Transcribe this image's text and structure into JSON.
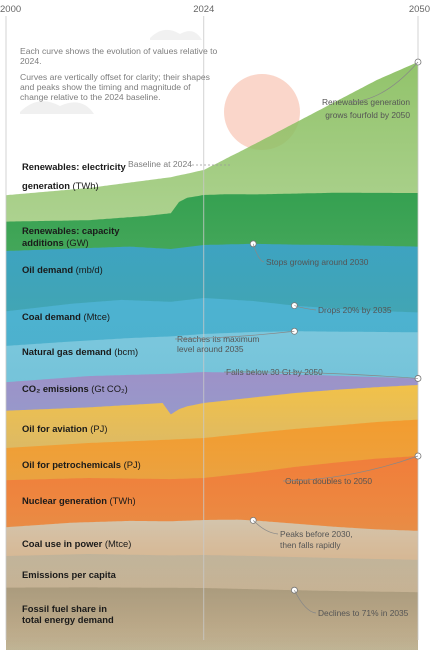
{
  "chart_data": {
    "type": "area",
    "x_axis": {
      "ticks": [
        "2000",
        "2024",
        "2050"
      ],
      "range": [
        2000,
        2050
      ],
      "baseline_year": "2024"
    },
    "notes": [
      "Each curve shows the evolution of values relative to 2024.",
      "Curves are vertically offset for clarity; their shapes and peaks show the timing and magnitude of change relative to the 2024 baseline."
    ],
    "baseline_label": "Baseline at 2024",
    "series": [
      {
        "name": "Renewables: electricity generation",
        "unit": "(TWh)",
        "color": "#8cc063",
        "x": [
          2000,
          2010,
          2020,
          2024,
          2030,
          2035,
          2040,
          2045,
          2050
        ],
        "y": [
          0.3,
          0.5,
          0.8,
          1.0,
          1.7,
          2.3,
          2.9,
          3.5,
          4.0
        ],
        "annotation": {
          "text": "Renewables generation grows fourfold by 2050",
          "year": 2050
        }
      },
      {
        "name": "Renewables: capacity additions",
        "unit": "(GW)",
        "color": "#2f9e4e",
        "x": [
          2000,
          2010,
          2017,
          2020,
          2021,
          2022,
          2024,
          2027,
          2030,
          2035,
          2040,
          2050
        ],
        "y": [
          0.05,
          0.1,
          0.25,
          0.35,
          0.75,
          0.9,
          1.0,
          1.03,
          1.02,
          1.05,
          1.08,
          1.07
        ]
      },
      {
        "name": "Oil demand",
        "unit": "(mb/d)",
        "color": "#3da3c7",
        "x": [
          2000,
          2008,
          2015,
          2020,
          2024,
          2030,
          2035,
          2040,
          2045,
          2050
        ],
        "y": [
          0.85,
          0.91,
          0.96,
          0.9,
          1.0,
          1.03,
          1.01,
          1.0,
          0.98,
          0.96
        ],
        "annotation": {
          "text": "Stops growing around 2030",
          "year": 2030
        }
      },
      {
        "name": "Coal demand",
        "unit": "(Mtce)",
        "color": "#4eb3d3",
        "x": [
          2000,
          2008,
          2014,
          2020,
          2024,
          2030,
          2035,
          2040,
          2045,
          2050
        ],
        "y": [
          0.65,
          0.85,
          0.95,
          0.9,
          1.0,
          0.92,
          0.8,
          0.72,
          0.66,
          0.62
        ],
        "annotation": {
          "text": "Drops 20% by 2035",
          "year": 2035
        }
      },
      {
        "name": "Natural gas demand",
        "unit": "(bcm)",
        "color": "#7ec8dd",
        "x": [
          2000,
          2008,
          2015,
          2020,
          2024,
          2030,
          2035,
          2040,
          2045,
          2050
        ],
        "y": [
          0.65,
          0.78,
          0.88,
          0.93,
          1.0,
          1.06,
          1.08,
          1.07,
          1.06,
          1.05
        ],
        "annotation": {
          "text": "Reaches its maximum level around 2035",
          "year": 2035
        }
      },
      {
        "name": "CO₂ emissions",
        "unit": "(Gt CO₂)",
        "color": "#9f8fc7",
        "x": [
          2000,
          2010,
          2020,
          2024,
          2030,
          2035,
          2040,
          2045,
          2050
        ],
        "y": [
          0.7,
          0.88,
          0.95,
          1.0,
          0.97,
          0.93,
          0.89,
          0.85,
          0.81
        ],
        "annotation": {
          "text": "Falls below 30 Gt by 2050",
          "year": 2050
        }
      },
      {
        "name": "Oil for aviation",
        "unit": "(PJ)",
        "color": "#f6c442",
        "x": [
          2000,
          2010,
          2019,
          2020,
          2021,
          2022,
          2024,
          2030,
          2035,
          2040,
          2045,
          2050
        ],
        "y": [
          0.65,
          0.8,
          1.0,
          0.48,
          0.72,
          0.85,
          1.0,
          1.25,
          1.45,
          1.6,
          1.72,
          1.82
        ]
      },
      {
        "name": "Oil for petrochemicals",
        "unit": "(PJ)",
        "color": "#f39a2e",
        "x": [
          2000,
          2010,
          2020,
          2024,
          2030,
          2035,
          2040,
          2045,
          2050
        ],
        "y": [
          0.5,
          0.75,
          0.92,
          1.0,
          1.25,
          1.45,
          1.62,
          1.8,
          1.92
        ]
      },
      {
        "name": "Nuclear generation",
        "unit": "(TWh)",
        "color": "#f07c3c",
        "x": [
          2000,
          2010,
          2020,
          2024,
          2030,
          2035,
          2040,
          2045,
          2050
        ],
        "y": [
          0.9,
          1.0,
          0.95,
          1.0,
          1.25,
          1.5,
          1.7,
          1.88,
          2.0
        ],
        "annotation": {
          "text": "Output doubles to 2050",
          "year": 2050
        }
      },
      {
        "name": "Coal use in power",
        "unit": "(Mtce)",
        "color": "#d2c8b2",
        "x": [
          2000,
          2008,
          2015,
          2020,
          2024,
          2028,
          2030,
          2035,
          2040,
          2045,
          2050
        ],
        "y": [
          0.6,
          0.85,
          0.95,
          0.93,
          1.0,
          1.02,
          0.98,
          0.8,
          0.62,
          0.48,
          0.4
        ],
        "annotation": {
          "text": "Peaks before 2030, then falls rapidly",
          "year": 2030
        }
      },
      {
        "name": "Emissions per capita",
        "unit": "",
        "color": "#bfb39a",
        "x": [
          2000,
          2010,
          2020,
          2024,
          2030,
          2035,
          2040,
          2045,
          2050
        ],
        "y": [
          0.95,
          1.05,
          0.98,
          1.0,
          0.95,
          0.9,
          0.85,
          0.8,
          0.76
        ]
      },
      {
        "name": "Fossil fuel share in total energy demand",
        "unit": "",
        "color": "#a99a7c",
        "x": [
          2000,
          2010,
          2020,
          2024,
          2030,
          2035,
          2040,
          2045,
          2050
        ],
        "y": [
          1.02,
          1.03,
          1.01,
          1.0,
          0.94,
          0.89,
          0.85,
          0.82,
          0.79
        ],
        "annotation": {
          "text": "Declines to 71% in 2035",
          "year": 2035
        }
      }
    ]
  }
}
